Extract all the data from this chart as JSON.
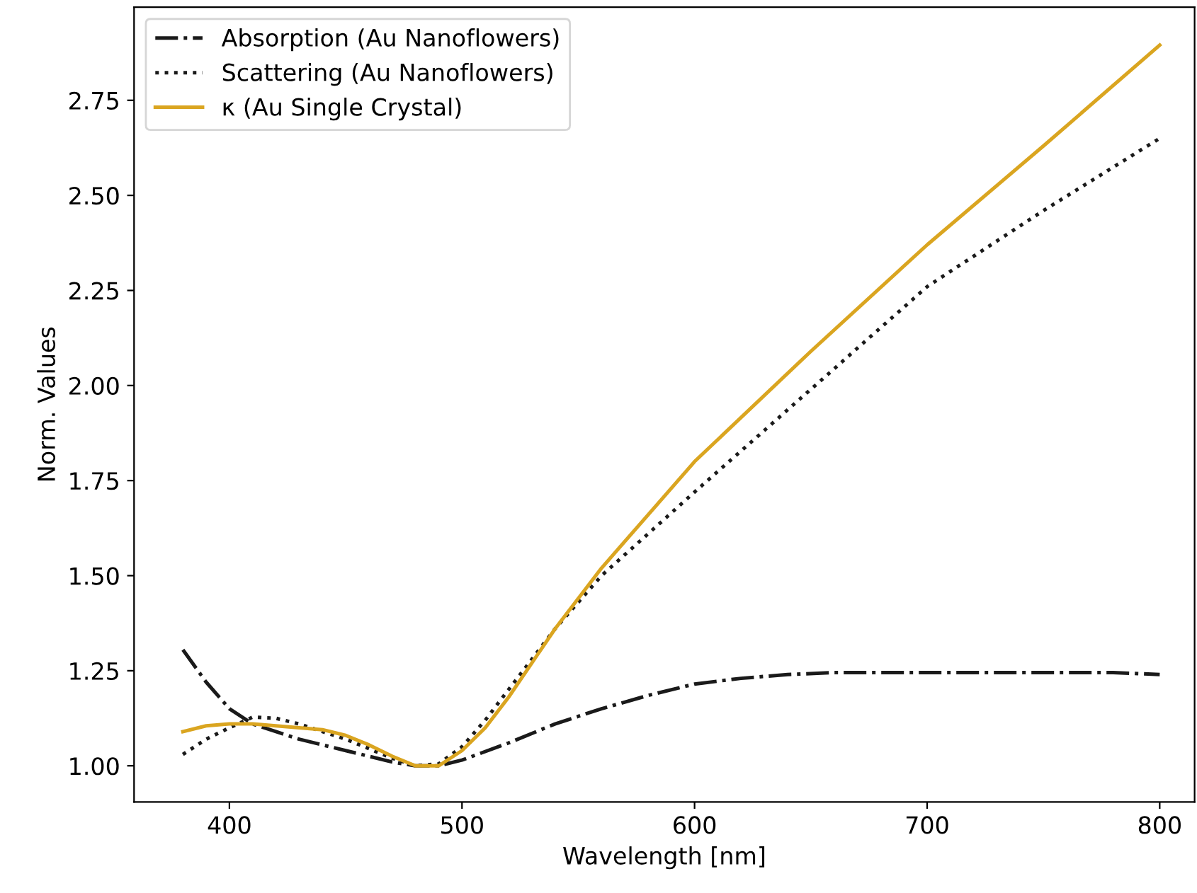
{
  "chart_data": {
    "type": "line",
    "xlabel": "Wavelength [nm]",
    "ylabel": "Norm. Values",
    "xlim": [
      359,
      815
    ],
    "ylim": [
      0.905,
      2.995
    ],
    "xticks": [
      400,
      500,
      600,
      700,
      800
    ],
    "yticks": [
      {
        "value": 1.0,
        "label": "1.00"
      },
      {
        "value": 1.25,
        "label": "1.25"
      },
      {
        "value": 1.5,
        "label": "1.50"
      },
      {
        "value": 1.75,
        "label": "1.75"
      },
      {
        "value": 2.0,
        "label": "2.00"
      },
      {
        "value": 2.25,
        "label": "2.25"
      },
      {
        "value": 2.5,
        "label": "2.50"
      },
      {
        "value": 2.75,
        "label": "2.75"
      }
    ],
    "grid": false,
    "legend": "top left",
    "marker": "none",
    "series": [
      {
        "name": "Absorption (Au Nanoflowers)",
        "color": "#1a1a1a",
        "line_style": "dashdot",
        "x": [
          380,
          390,
          400,
          410,
          420,
          430,
          440,
          450,
          460,
          470,
          480,
          490,
          500,
          520,
          540,
          560,
          580,
          600,
          620,
          640,
          660,
          700,
          750,
          780,
          800
        ],
        "values": [
          1.305,
          1.22,
          1.15,
          1.11,
          1.09,
          1.07,
          1.055,
          1.04,
          1.025,
          1.01,
          1.0,
          1.0,
          1.015,
          1.06,
          1.11,
          1.15,
          1.185,
          1.215,
          1.23,
          1.24,
          1.245,
          1.245,
          1.245,
          1.245,
          1.24
        ]
      },
      {
        "name": "Scattering (Au Nanoflowers)",
        "color": "#1a1a1a",
        "line_style": "dotted",
        "x": [
          380,
          390,
          400,
          410,
          420,
          430,
          440,
          450,
          460,
          470,
          480,
          490,
          500,
          510,
          520,
          530,
          540,
          560,
          600,
          650,
          700,
          750,
          800
        ],
        "values": [
          1.03,
          1.07,
          1.1,
          1.128,
          1.125,
          1.11,
          1.09,
          1.07,
          1.045,
          1.02,
          1.0,
          1.005,
          1.05,
          1.12,
          1.2,
          1.28,
          1.36,
          1.5,
          1.72,
          1.99,
          2.26,
          2.46,
          2.65
        ]
      },
      {
        "name": "κ (Au Single Crystal)",
        "color": "#daa520",
        "line_style": "solid",
        "x": [
          380,
          390,
          400,
          410,
          420,
          430,
          440,
          450,
          460,
          470,
          480,
          490,
          500,
          510,
          520,
          530,
          540,
          560,
          580,
          600,
          650,
          700,
          750,
          800
        ],
        "values": [
          1.09,
          1.105,
          1.11,
          1.11,
          1.105,
          1.1,
          1.095,
          1.08,
          1.055,
          1.025,
          1.0,
          1.0,
          1.04,
          1.1,
          1.18,
          1.27,
          1.36,
          1.52,
          1.66,
          1.8,
          2.09,
          2.37,
          2.63,
          2.895
        ]
      }
    ]
  }
}
